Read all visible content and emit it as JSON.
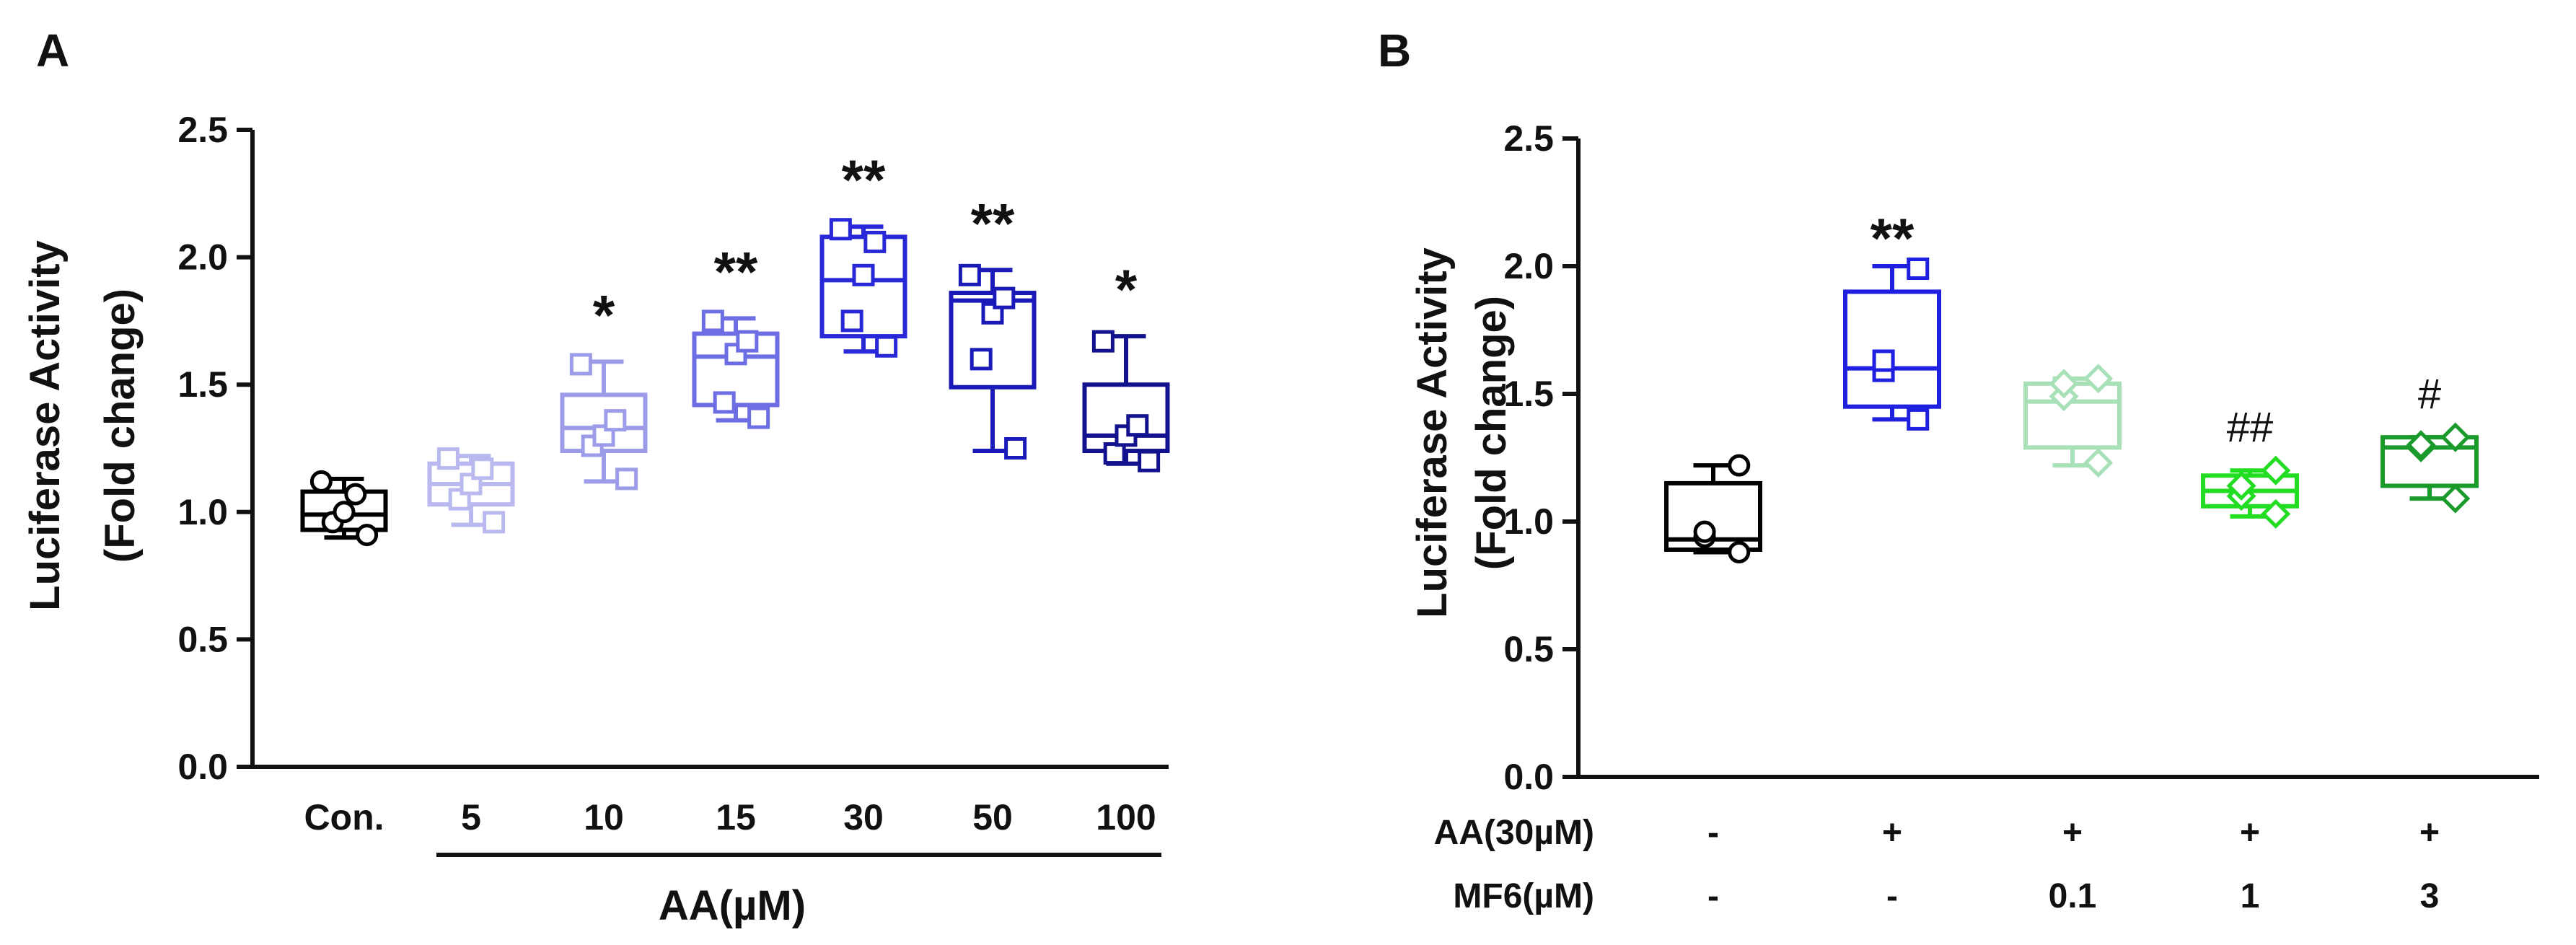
{
  "chart_data": [
    {
      "panel": "A",
      "type": "box",
      "ylabel_line1": "Luciferase Activity",
      "ylabel_line2": "(Fold change)",
      "ylim": [
        0,
        2.5
      ],
      "yticks": [
        "0.0",
        "0.5",
        "1.0",
        "1.5",
        "2.0",
        "2.5"
      ],
      "categories": [
        "Con.",
        "5",
        "10",
        "15",
        "30",
        "50",
        "100"
      ],
      "group_label": "AA(µM)",
      "groups": [
        {
          "label": "Con.",
          "color": "#000000",
          "marker": "circle",
          "min": 0.9,
          "q1": 0.93,
          "median": 0.99,
          "q3": 1.08,
          "max": 1.13,
          "points": [
            0.91,
            0.96,
            1.0,
            1.07,
            1.12
          ],
          "sig": ""
        },
        {
          "label": "5",
          "color": "#b9b9f0",
          "marker": "square",
          "min": 0.95,
          "q1": 1.03,
          "median": 1.11,
          "q3": 1.19,
          "max": 1.22,
          "points": [
            0.96,
            1.05,
            1.11,
            1.17,
            1.21
          ],
          "sig": ""
        },
        {
          "label": "10",
          "color": "#9c9ce8",
          "marker": "square",
          "min": 1.12,
          "q1": 1.24,
          "median": 1.33,
          "q3": 1.46,
          "max": 1.59,
          "points": [
            1.13,
            1.26,
            1.3,
            1.36,
            1.58
          ],
          "sig": "*"
        },
        {
          "label": "15",
          "color": "#6e6ee4",
          "marker": "square",
          "min": 1.36,
          "q1": 1.42,
          "median": 1.61,
          "q3": 1.7,
          "max": 1.76,
          "points": [
            1.37,
            1.43,
            1.62,
            1.67,
            1.75
          ],
          "sig": "**"
        },
        {
          "label": "30",
          "color": "#2828d8",
          "marker": "square",
          "min": 1.63,
          "q1": 1.69,
          "median": 1.91,
          "q3": 2.08,
          "max": 2.12,
          "points": [
            1.65,
            1.75,
            1.93,
            2.06,
            2.11
          ],
          "sig": "**"
        },
        {
          "label": "50",
          "color": "#1a1ab8",
          "marker": "square",
          "min": 1.24,
          "q1": 1.49,
          "median": 1.83,
          "q3": 1.86,
          "max": 1.95,
          "points": [
            1.25,
            1.6,
            1.78,
            1.84,
            1.93
          ],
          "sig": "**"
        },
        {
          "label": "100",
          "color": "#12128f",
          "marker": "square",
          "min": 1.19,
          "q1": 1.24,
          "median": 1.3,
          "q3": 1.5,
          "max": 1.69,
          "points": [
            1.2,
            1.23,
            1.3,
            1.34,
            1.67
          ],
          "sig": "*"
        }
      ]
    },
    {
      "panel": "B",
      "type": "box",
      "ylabel_line1": "Luciferase Activity",
      "ylabel_line2": "(Fold change)",
      "ylim": [
        0,
        2.5
      ],
      "yticks": [
        "0.0",
        "0.5",
        "1.0",
        "1.5",
        "2.0",
        "2.5"
      ],
      "row_labels": [
        "AA(30µM)",
        "MF6(µM)"
      ],
      "row1": [
        "-",
        "+",
        "+",
        "+",
        "+"
      ],
      "row2": [
        "-",
        "-",
        "0.1",
        "1",
        "3"
      ],
      "groups": [
        {
          "color": "#000000",
          "marker": "circle",
          "min": 0.88,
          "q1": 0.89,
          "median": 0.93,
          "q3": 1.15,
          "max": 1.22,
          "points": [
            0.88,
            0.94,
            0.96,
            1.22
          ],
          "sig": ""
        },
        {
          "color": "#1f1fe0",
          "marker": "square",
          "min": 1.4,
          "q1": 1.45,
          "median": 1.6,
          "q3": 1.9,
          "max": 2.0,
          "points": [
            1.4,
            1.59,
            1.63,
            1.99
          ],
          "sig": "**"
        },
        {
          "color": "#a8e0b8",
          "marker": "diamond",
          "min": 1.22,
          "q1": 1.29,
          "median": 1.47,
          "q3": 1.54,
          "max": 1.56,
          "points": [
            1.23,
            1.49,
            1.54,
            1.56
          ],
          "sig": ""
        },
        {
          "color": "#22dd22",
          "marker": "diamond",
          "min": 1.02,
          "q1": 1.06,
          "median": 1.12,
          "q3": 1.18,
          "max": 1.2,
          "points": [
            1.03,
            1.1,
            1.14,
            1.2
          ],
          "sig": "##"
        },
        {
          "color": "#1a9a2a",
          "marker": "diamond",
          "min": 1.09,
          "q1": 1.14,
          "median": 1.29,
          "q3": 1.33,
          "max": 1.33,
          "points": [
            1.09,
            1.29,
            1.3,
            1.33
          ],
          "sig": "#"
        }
      ]
    }
  ]
}
